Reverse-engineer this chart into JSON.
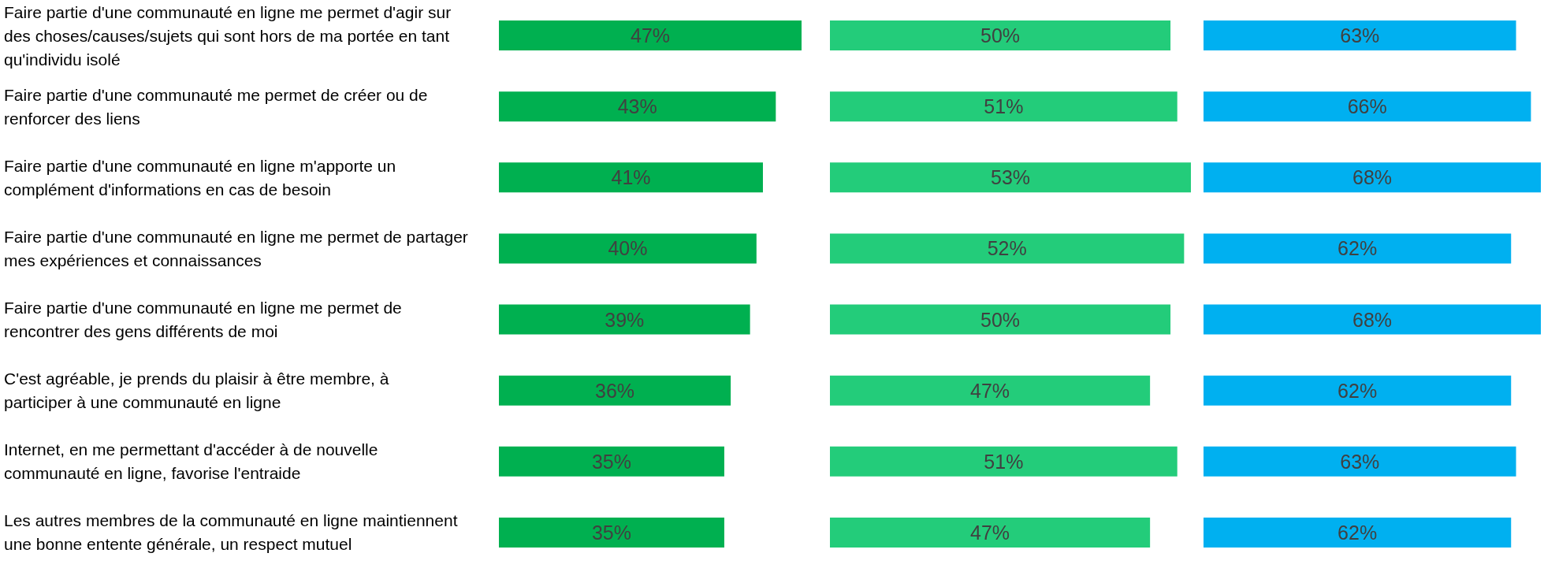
{
  "chart_data": [
    {
      "type": "bar",
      "orientation": "horizontal",
      "categories": [
        "Faire partie d'une communauté en ligne me permet d'agir sur des choses/causes/sujets qui sont hors de ma portée en tant qu'individu isolé",
        "Faire partie d'une communauté me permet de créer ou de renforcer des liens",
        "Faire partie d'une communauté en ligne m'apporte un complément d'informations en cas de besoin",
        "Faire partie d'une communauté en ligne me permet de partager mes expériences et connaissances",
        "Faire partie d'une communauté en ligne me permet de rencontrer des gens différents de moi",
        "C'est agréable, je prends du plaisir à être membre, à participer à une communauté en ligne",
        "Internet, en me permettant d'accéder à de nouvelle communauté en ligne, favorise l'entraide",
        "Les autres membres de la communauté en ligne maintiennent une bonne entente générale, un respect mutuel"
      ],
      "values": [
        47,
        43,
        41,
        40,
        39,
        36,
        35,
        35
      ],
      "color": "#00b050",
      "value_labels": [
        "47%",
        "43%",
        "41%",
        "40%",
        "39%",
        "36%",
        "35%",
        "35%"
      ],
      "tick_labels": "y"
    },
    {
      "type": "bar",
      "orientation": "horizontal",
      "categories": [
        null,
        null,
        null,
        null,
        null,
        null,
        null,
        null
      ],
      "values": [
        50,
        51,
        53,
        52,
        50,
        47,
        51,
        47
      ],
      "color": "#23cc7a",
      "value_labels": [
        "50%",
        "51%",
        "53%",
        "52%",
        "50%",
        "47%",
        "51%",
        "47%"
      ],
      "tick_labels": false
    },
    {
      "type": "bar",
      "orientation": "horizontal",
      "categories": [
        null,
        null,
        null,
        null,
        null,
        null,
        null,
        null
      ],
      "values": [
        63,
        66,
        68,
        62,
        68,
        62,
        63,
        62
      ],
      "color": "#00b0f0",
      "value_labels": [
        "63%",
        "66%",
        "68%",
        "62%",
        "68%",
        "62%",
        "63%",
        "62%"
      ],
      "tick_labels": false
    }
  ]
}
